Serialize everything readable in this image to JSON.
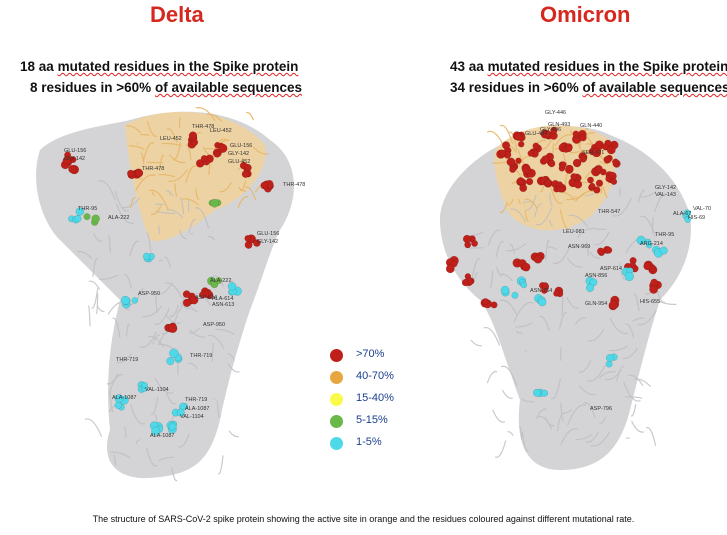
{
  "titles": {
    "delta": "Delta",
    "omicron": "Omicron"
  },
  "delta": {
    "line1_count": "18 aa",
    "line1_rest": "mutated residues in the Spike protein",
    "line2_count": "8 residues in >60%",
    "line2_rest": "of available sequences",
    "residue_labels": [
      "GLU-156",
      "GLY-142",
      "THR-478",
      "LEU-452",
      "LEU-452",
      "THR-478",
      "GLU-156",
      "GLY-142",
      "GLU-452",
      "THR-478",
      "THR-95",
      "ALA-222",
      "GLU-156",
      "GLY-142",
      "ALA-222",
      "ASP-950",
      "ASP-614",
      "ALA-614",
      "ASN-613",
      "ASP-950",
      "THR-719",
      "THR-719",
      "VAL-1104",
      "ALA-1087",
      "THR-719",
      "ALA-1087",
      "VAL-1104",
      "ALA-1087"
    ]
  },
  "omicron": {
    "line1_count": "43 aa",
    "line1_rest": "mutated residues in the Spike protein",
    "line2_count": "34 residues in >60%",
    "line2_rest": "of available sequences",
    "residue_labels": [
      "GLY-446",
      "GLN-493",
      "GLN-440",
      "GLU-484",
      "GLY-496",
      "SER-371",
      "GLY-142",
      "VAL-143",
      "VAL-70",
      "ALA-67",
      "HIS-69",
      "THR-547",
      "THR-95",
      "LEU-981",
      "ASN-969",
      "ARG-214",
      "ASP-614",
      "ASN-856",
      "ASN-764",
      "GLN-954",
      "HIS-655",
      "ASP-796"
    ]
  },
  "legend": [
    {
      "label": ">70%",
      "color": "#c0201a"
    },
    {
      "label": "40-70%",
      "color": "#e6a640"
    },
    {
      "label": "15-40%",
      "color": "#fafa4a"
    },
    {
      "label": "5-15%",
      "color": "#6bb84a"
    },
    {
      "label": "1-5%",
      "color": "#4fd8e8"
    }
  ],
  "caption": "The structure of SARS-CoV-2 spike protein showing the active site in orange and the residues coloured against different mutational rate."
}
